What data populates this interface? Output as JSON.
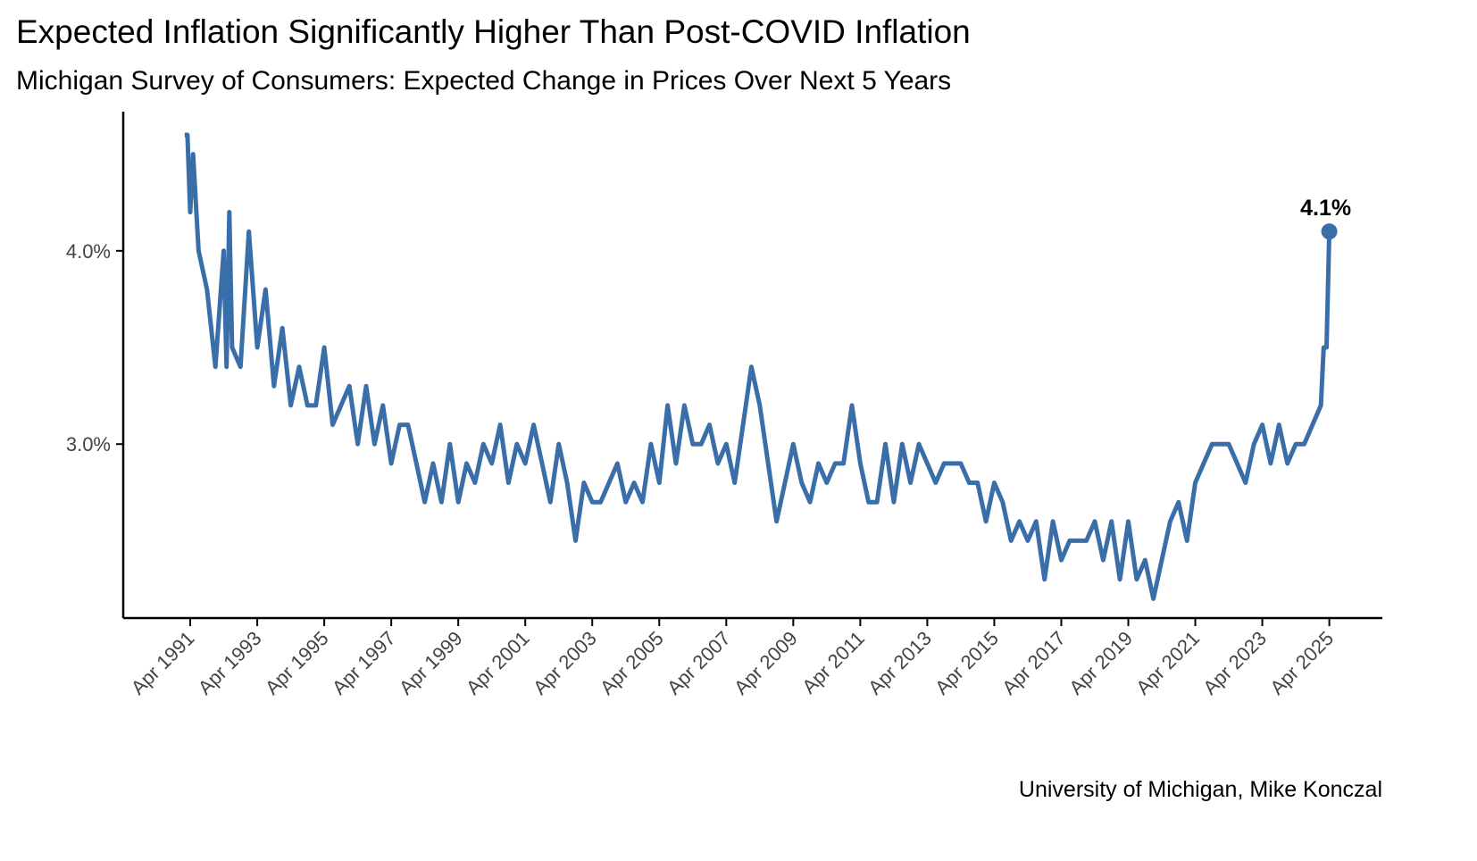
{
  "chart_data": {
    "type": "line",
    "title": "Expected Inflation Significantly Higher Than Post-COVID Inflation",
    "subtitle": "Michigan Survey of Consumers: Expected Change in Prices Over Next 5 Years",
    "caption": "University of Michigan, Mike Konczal",
    "x": [
      "1991-02",
      "1991-03",
      "1991-04",
      "1991-05",
      "1991-07",
      "1991-10",
      "1992-01",
      "1992-04",
      "1992-05",
      "1992-06",
      "1992-07",
      "1992-10",
      "1993-01",
      "1993-04",
      "1993-07",
      "1993-10",
      "1994-01",
      "1994-04",
      "1994-07",
      "1994-10",
      "1995-01",
      "1995-04",
      "1995-07",
      "1995-10",
      "1996-01",
      "1996-04",
      "1996-07",
      "1996-10",
      "1997-01",
      "1997-04",
      "1997-07",
      "1997-10",
      "1998-01",
      "1998-04",
      "1998-07",
      "1998-10",
      "1999-01",
      "1999-04",
      "1999-07",
      "1999-10",
      "2000-01",
      "2000-04",
      "2000-07",
      "2000-10",
      "2001-01",
      "2001-04",
      "2001-07",
      "2001-10",
      "2002-01",
      "2002-04",
      "2002-07",
      "2002-10",
      "2003-01",
      "2003-04",
      "2003-07",
      "2003-10",
      "2004-01",
      "2004-04",
      "2004-07",
      "2004-10",
      "2005-01",
      "2005-04",
      "2005-07",
      "2005-10",
      "2006-01",
      "2006-04",
      "2006-07",
      "2006-10",
      "2007-01",
      "2007-04",
      "2007-07",
      "2007-10",
      "2008-01",
      "2008-04",
      "2008-07",
      "2008-10",
      "2009-01",
      "2009-04",
      "2009-07",
      "2009-10",
      "2010-01",
      "2010-04",
      "2010-07",
      "2010-10",
      "2011-01",
      "2011-04",
      "2011-07",
      "2011-10",
      "2012-01",
      "2012-04",
      "2012-07",
      "2012-10",
      "2013-01",
      "2013-04",
      "2013-07",
      "2013-10",
      "2014-01",
      "2014-04",
      "2014-07",
      "2014-10",
      "2015-01",
      "2015-04",
      "2015-07",
      "2015-10",
      "2016-01",
      "2016-04",
      "2016-07",
      "2016-10",
      "2017-01",
      "2017-04",
      "2017-07",
      "2017-10",
      "2018-01",
      "2018-04",
      "2018-07",
      "2018-10",
      "2019-01",
      "2019-04",
      "2019-07",
      "2019-10",
      "2020-01",
      "2020-04",
      "2020-07",
      "2020-10",
      "2021-01",
      "2021-04",
      "2021-07",
      "2021-10",
      "2022-01",
      "2022-04",
      "2022-07",
      "2022-10",
      "2023-01",
      "2023-04",
      "2023-07",
      "2023-10",
      "2024-01",
      "2024-04",
      "2024-07",
      "2024-10",
      "2025-01",
      "2025-02",
      "2025-03",
      "2025-04"
    ],
    "series": [
      {
        "name": "Expected Change in Prices Over Next 5 Years",
        "color": "#3a6ea8",
        "values": [
          4.6,
          4.6,
          4.2,
          4.5,
          4.0,
          3.8,
          3.4,
          4.0,
          3.4,
          4.2,
          3.5,
          3.4,
          4.1,
          3.5,
          3.8,
          3.3,
          3.6,
          3.2,
          3.4,
          3.2,
          3.2,
          3.5,
          3.1,
          3.2,
          3.3,
          3.0,
          3.3,
          3.0,
          3.2,
          2.9,
          3.1,
          3.1,
          2.9,
          2.7,
          2.9,
          2.7,
          3.0,
          2.7,
          2.9,
          2.8,
          3.0,
          2.9,
          3.1,
          2.8,
          3.0,
          2.9,
          3.1,
          2.9,
          2.7,
          3.0,
          2.8,
          2.5,
          2.8,
          2.7,
          2.7,
          2.8,
          2.9,
          2.7,
          2.8,
          2.7,
          3.0,
          2.8,
          3.2,
          2.9,
          3.2,
          3.0,
          3.0,
          3.1,
          2.9,
          3.0,
          2.8,
          3.1,
          3.4,
          3.2,
          2.9,
          2.6,
          2.8,
          3.0,
          2.8,
          2.7,
          2.9,
          2.8,
          2.9,
          2.9,
          3.2,
          2.9,
          2.7,
          2.7,
          3.0,
          2.7,
          3.0,
          2.8,
          3.0,
          2.9,
          2.8,
          2.9,
          2.9,
          2.9,
          2.8,
          2.8,
          2.6,
          2.8,
          2.7,
          2.5,
          2.6,
          2.5,
          2.6,
          2.3,
          2.6,
          2.4,
          2.5,
          2.5,
          2.5,
          2.6,
          2.4,
          2.6,
          2.3,
          2.6,
          2.3,
          2.4,
          2.2,
          2.4,
          2.6,
          2.7,
          2.5,
          2.8,
          2.9,
          3.0,
          3.0,
          3.0,
          2.9,
          2.8,
          3.0,
          3.1,
          2.9,
          3.1,
          2.9,
          3.0,
          3.0,
          3.1,
          3.2,
          3.5,
          3.5,
          4.1
        ]
      }
    ],
    "end_label": {
      "value": 4.1,
      "label": "4.1%"
    },
    "xlim": [
      "1989-04",
      "2026-11"
    ],
    "xticks": [
      {
        "value": "1991-04",
        "label": "Apr 1991"
      },
      {
        "value": "1993-04",
        "label": "Apr 1993"
      },
      {
        "value": "1995-04",
        "label": "Apr 1995"
      },
      {
        "value": "1997-04",
        "label": "Apr 1997"
      },
      {
        "value": "1999-04",
        "label": "Apr 1999"
      },
      {
        "value": "2001-04",
        "label": "Apr 2001"
      },
      {
        "value": "2003-04",
        "label": "Apr 2003"
      },
      {
        "value": "2005-04",
        "label": "Apr 2005"
      },
      {
        "value": "2007-04",
        "label": "Apr 2007"
      },
      {
        "value": "2009-04",
        "label": "Apr 2009"
      },
      {
        "value": "2011-04",
        "label": "Apr 2011"
      },
      {
        "value": "2013-04",
        "label": "Apr 2013"
      },
      {
        "value": "2015-04",
        "label": "Apr 2015"
      },
      {
        "value": "2017-04",
        "label": "Apr 2017"
      },
      {
        "value": "2019-04",
        "label": "Apr 2019"
      },
      {
        "value": "2021-04",
        "label": "Apr 2021"
      },
      {
        "value": "2023-04",
        "label": "Apr 2023"
      },
      {
        "value": "2025-04",
        "label": "Apr 2025"
      }
    ],
    "ylim": [
      2.1,
      4.72
    ],
    "yticks": [
      {
        "value": 3,
        "label": "3.0%"
      },
      {
        "value": 4,
        "label": "4.0%"
      }
    ],
    "grid": false
  }
}
